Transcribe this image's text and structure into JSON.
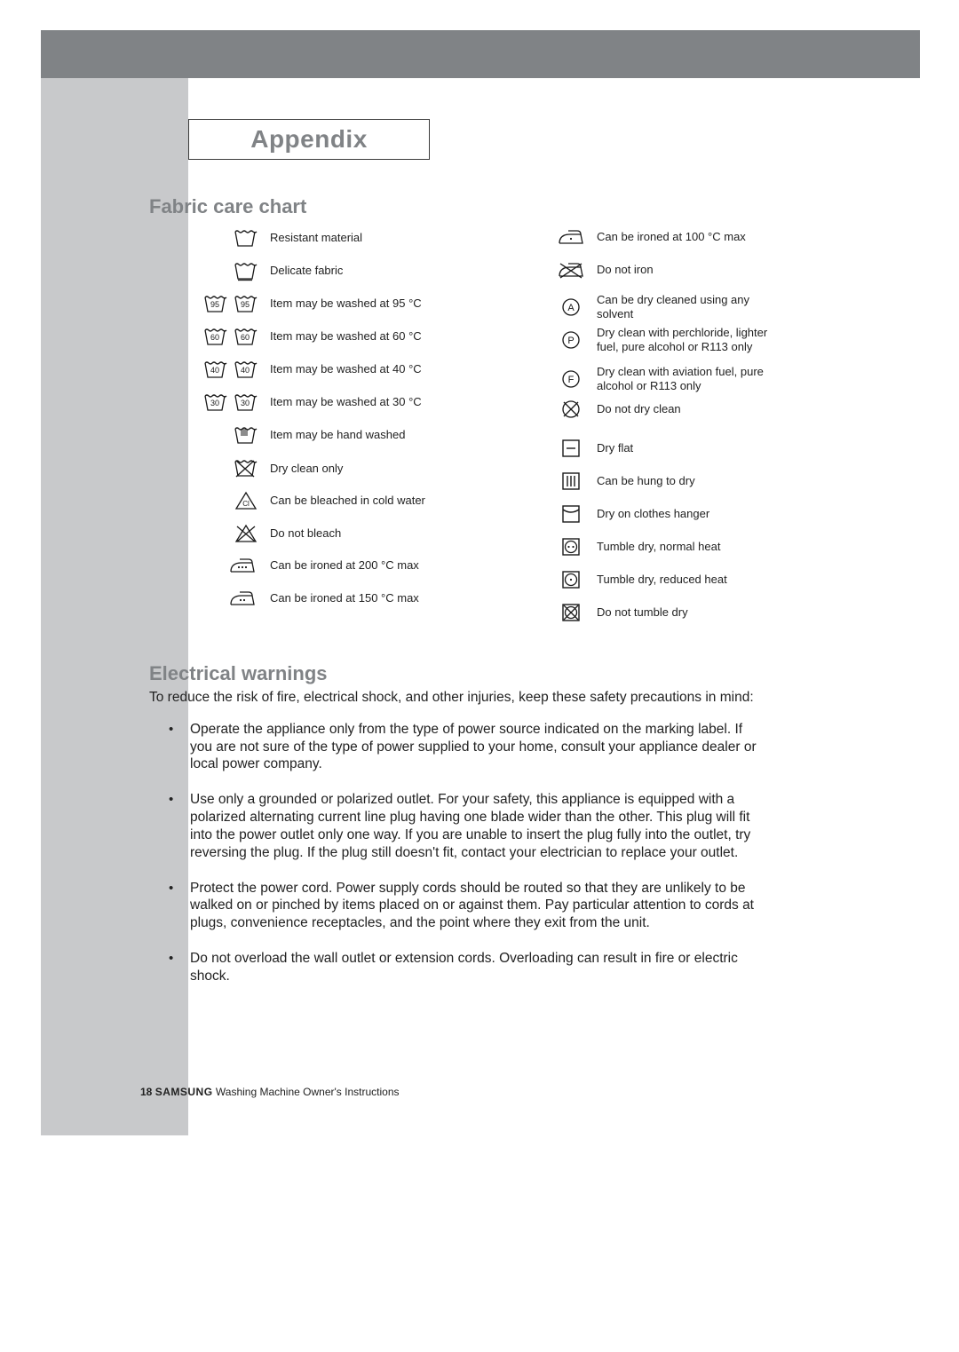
{
  "title": "Appendix",
  "headings": {
    "fabric": "Fabric care chart",
    "electrical": "Electrical warnings"
  },
  "colors": {
    "topbar": "#808386",
    "sidebar": "#c8c9cb",
    "heading": "#808386",
    "text": "#222222",
    "icon_stroke": "#1a1a1a",
    "background": "#ffffff"
  },
  "typography": {
    "title_fontsize": 28,
    "heading_fontsize": 22,
    "label_fontsize": 13,
    "body_fontsize": 15.5,
    "footer_fontsize": 12
  },
  "chart": {
    "type": "infographic",
    "left_column": [
      {
        "icon": "tub",
        "icon2": null,
        "label": "Resistant material"
      },
      {
        "icon": "tub_bar",
        "icon2": null,
        "label": "Delicate fabric"
      },
      {
        "icon": "tub_95",
        "icon2": "tub_95",
        "label": "Item may be washed at 95 °C"
      },
      {
        "icon": "tub_60",
        "icon2": "tub_60",
        "label": "Item may be washed at 60 °C"
      },
      {
        "icon": "tub_40",
        "icon2": "tub_40",
        "label": "Item may be washed at 40 °C"
      },
      {
        "icon": "tub_30",
        "icon2": "tub_30",
        "label": "Item may be washed at 30 °C"
      },
      {
        "icon": "tub_hand",
        "icon2": null,
        "label": "Item may be hand washed"
      },
      {
        "icon": "tub_x",
        "icon2": null,
        "label": "Dry clean only"
      },
      {
        "icon": "triangle_cl",
        "icon2": null,
        "label": "Can be bleached in cold water"
      },
      {
        "icon": "triangle_x",
        "icon2": null,
        "label": "Do not bleach"
      },
      {
        "icon": "iron_3",
        "icon2": null,
        "label": "Can be ironed at 200 °C max"
      },
      {
        "icon": "iron_2",
        "icon2": null,
        "label": "Can be ironed at 150 °C max"
      }
    ],
    "right_column": [
      {
        "icon": "iron_1",
        "label": "Can be ironed at 100 °C  max"
      },
      {
        "icon": "iron_x",
        "label": "Do not iron"
      },
      {
        "icon": "circle_A",
        "label": "Can be dry cleaned using any solvent"
      },
      {
        "icon": "circle_P",
        "label": "Dry clean with perchloride, lighter fuel, pure alcohol or R113 only"
      },
      {
        "icon": "circle_F",
        "label": "Dry clean with aviation fuel, pure alcohol or R113 only"
      },
      {
        "icon": "circle_x",
        "label": "Do not dry clean"
      },
      {
        "icon": "sq_dash",
        "label": "Dry flat"
      },
      {
        "icon": "sq_bars",
        "label": "Can be hung to dry"
      },
      {
        "icon": "sq_arc",
        "label": "Dry on clothes hanger"
      },
      {
        "icon": "sq_c2",
        "label": "Tumble dry, normal heat"
      },
      {
        "icon": "sq_c1",
        "label": "Tumble dry, reduced heat"
      },
      {
        "icon": "sq_cx",
        "label": "Do not tumble dry"
      }
    ],
    "left_row_spacing": 37,
    "right_row_spacing": 37
  },
  "warnings": {
    "intro": "To reduce the risk of fire, electrical shock, and other injuries, keep these safety precautions in mind:",
    "items": [
      "Operate the appliance only from the type of power source indicated on the marking label.  If you are not sure of the type of power supplied to your home, consult your appliance dealer or local power company.",
      "Use only a grounded or polarized outlet.  For your safety, this appliance is equipped with a polarized alternating current line plug having one blade wider than the other.  This plug will fit into the power outlet only one way.  If you are unable to insert the plug fully into the outlet, try reversing the plug.  If the plug still doesn't fit, contact your electrician to replace your outlet.",
      "Protect the power cord. Power supply cords should be routed so that they are unlikely to be walked on or pinched by items placed on or against them.  Pay particular attention to cords at plugs, convenience receptacles, and the point where they exit from the unit.",
      "Do not overload the wall outlet or extension cords.  Overloading can result in fire or electric shock."
    ]
  },
  "footer": {
    "page": "18",
    "brand": "SAMSUNG",
    "tail": "Washing Machine Owner's Instructions"
  }
}
